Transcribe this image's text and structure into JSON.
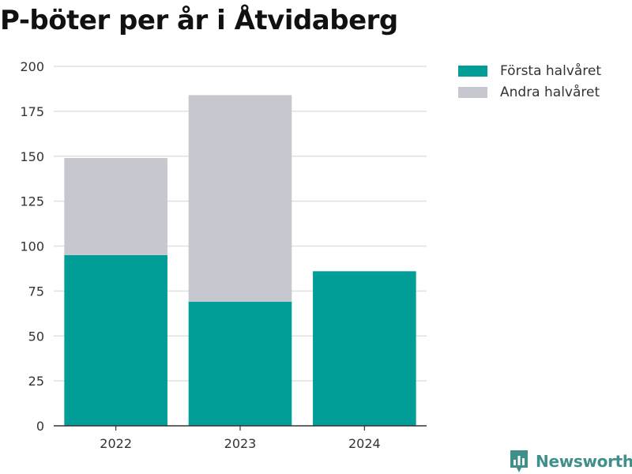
{
  "chart_data": {
    "type": "bar",
    "stacked": true,
    "title": "P-böter per år i Åtvidaberg",
    "categories": [
      "2022",
      "2023",
      "2024"
    ],
    "series": [
      {
        "name": "Första halvåret",
        "color": "#009e96",
        "values": [
          95,
          69,
          86
        ]
      },
      {
        "name": "Andra halvåret",
        "color": "#c7c7cf",
        "values": [
          54,
          115,
          0
        ]
      }
    ],
    "xlabel": "",
    "ylabel": "",
    "ylim": [
      0,
      200
    ],
    "yticks": [
      0,
      25,
      50,
      75,
      100,
      125,
      150,
      175,
      200
    ],
    "grid": true,
    "legend_position": "top-right"
  },
  "brand": {
    "name": "Newsworthy",
    "icon": "newsworthy-logo-icon",
    "color": "#3f8f8b"
  }
}
